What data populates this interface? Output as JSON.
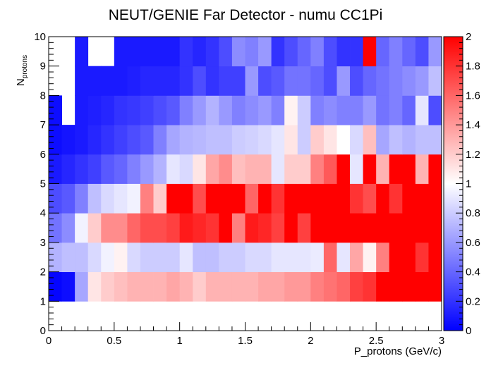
{
  "chart_data": {
    "type": "heatmap",
    "title": "NEUT/GENIE Far Detector - numu CC1Pi",
    "xlabel": "P_protons (GeV/c)",
    "ylabel_main": "N",
    "ylabel_sub": "protons",
    "x_range": [
      0,
      3
    ],
    "y_range": [
      0,
      10
    ],
    "x_bin_width": 0.1,
    "y_bin_width": 1,
    "z_range": [
      0,
      2
    ],
    "x_ticks": [
      {
        "value": 0,
        "label": "0"
      },
      {
        "value": 0.5,
        "label": "0.5"
      },
      {
        "value": 1,
        "label": "1"
      },
      {
        "value": 1.5,
        "label": "1.5"
      },
      {
        "value": 2,
        "label": "2"
      },
      {
        "value": 2.5,
        "label": "2.5"
      },
      {
        "value": 3,
        "label": "3"
      }
    ],
    "y_ticks": [
      {
        "value": 0,
        "label": "0"
      },
      {
        "value": 1,
        "label": "1"
      },
      {
        "value": 2,
        "label": "2"
      },
      {
        "value": 3,
        "label": "3"
      },
      {
        "value": 4,
        "label": "4"
      },
      {
        "value": 5,
        "label": "5"
      },
      {
        "value": 6,
        "label": "6"
      },
      {
        "value": 7,
        "label": "7"
      },
      {
        "value": 8,
        "label": "8"
      },
      {
        "value": 9,
        "label": "9"
      },
      {
        "value": 10,
        "label": "10"
      }
    ],
    "z_ticks": [
      {
        "value": 0,
        "label": "0"
      },
      {
        "value": 0.2,
        "label": "0.2"
      },
      {
        "value": 0.4,
        "label": "0.4"
      },
      {
        "value": 0.6,
        "label": "0.6"
      },
      {
        "value": 0.8,
        "label": "0.8"
      },
      {
        "value": 1,
        "label": "1"
      },
      {
        "value": 1.2,
        "label": "1.2"
      },
      {
        "value": 1.4,
        "label": "1.4"
      },
      {
        "value": 1.6,
        "label": "1.6"
      },
      {
        "value": 1.8,
        "label": "1.8"
      },
      {
        "value": 2,
        "label": "2"
      }
    ],
    "palette": {
      "low": "#0000ff",
      "mid": "#ffffff",
      "high": "#ff0000"
    },
    "z_rows_note": "values[row] = y bin row (row 0 = N 0-1), each row has 30 x bins of width 0.1; null = empty bin",
    "values": [
      [
        null,
        null,
        null,
        null,
        null,
        null,
        null,
        null,
        null,
        null,
        null,
        null,
        null,
        null,
        null,
        null,
        null,
        null,
        null,
        null,
        null,
        null,
        null,
        null,
        null,
        null,
        null,
        null,
        null,
        null
      ],
      [
        0.02,
        0.05,
        0.65,
        1.1,
        1.2,
        1.25,
        1.3,
        1.3,
        1.3,
        1.35,
        1.3,
        1.2,
        1.3,
        1.3,
        1.3,
        1.3,
        1.35,
        1.35,
        1.4,
        1.4,
        1.5,
        1.55,
        1.6,
        1.75,
        1.8,
        2.0,
        2.0,
        2.0,
        2.0,
        2.0
      ],
      [
        0.7,
        0.75,
        0.75,
        0.85,
        0.95,
        1.05,
        0.85,
        0.8,
        0.8,
        0.8,
        0.9,
        0.75,
        0.75,
        0.8,
        0.8,
        0.85,
        0.85,
        0.9,
        0.9,
        0.9,
        0.92,
        1.6,
        0.9,
        1.35,
        1.05,
        1.5,
        2.0,
        2.0,
        1.8,
        2.0
      ],
      [
        0.45,
        0.55,
        0.95,
        1.2,
        1.45,
        1.45,
        1.6,
        1.7,
        1.7,
        1.75,
        1.9,
        1.85,
        1.8,
        2.0,
        1.5,
        1.9,
        1.85,
        1.75,
        2.0,
        1.75,
        2.0,
        2.0,
        2.0,
        2.0,
        2.0,
        2.0,
        2.0,
        2.0,
        2.0,
        2.0
      ],
      [
        0.3,
        0.35,
        0.5,
        0.75,
        0.85,
        0.9,
        0.95,
        1.5,
        1.2,
        2.0,
        2.0,
        1.7,
        2.0,
        2.0,
        2.0,
        1.6,
        2.0,
        1.8,
        2.0,
        2.0,
        2.0,
        2.0,
        2.0,
        1.8,
        1.7,
        2.0,
        1.8,
        2.0,
        2.0,
        2.0
      ],
      [
        0.1,
        0.15,
        0.2,
        0.25,
        0.35,
        0.4,
        0.5,
        0.6,
        0.7,
        0.9,
        0.85,
        1.1,
        1.35,
        1.45,
        1.25,
        1.3,
        1.3,
        0.9,
        1.2,
        1.2,
        1.5,
        1.65,
        2.0,
        0.9,
        2.0,
        1.3,
        2.0,
        2.0,
        1.3,
        2.0
      ],
      [
        0.05,
        0.08,
        0.1,
        0.15,
        0.2,
        0.25,
        0.3,
        0.35,
        0.5,
        0.65,
        0.7,
        0.72,
        0.75,
        0.75,
        0.8,
        0.82,
        0.85,
        0.9,
        1.1,
        0.8,
        1.2,
        1.1,
        1.0,
        0.85,
        1.25,
        0.65,
        0.75,
        0.7,
        0.75,
        0.75
      ],
      [
        0.05,
        null,
        0.1,
        0.12,
        0.15,
        0.2,
        0.22,
        0.25,
        0.3,
        0.35,
        0.5,
        0.6,
        0.7,
        0.6,
        0.5,
        0.55,
        0.6,
        0.5,
        1.05,
        0.8,
        0.5,
        0.55,
        0.5,
        0.5,
        0.6,
        0.45,
        0.5,
        0.4,
        0.9,
        0.3
      ],
      [
        null,
        null,
        0.1,
        0.1,
        0.1,
        0.1,
        0.12,
        0.15,
        0.15,
        0.15,
        0.2,
        0.3,
        0.2,
        0.25,
        0.25,
        0.6,
        0.3,
        0.35,
        0.45,
        0.45,
        0.4,
        0.3,
        0.6,
        0.3,
        0.4,
        0.45,
        0.5,
        0.55,
        0.6,
        0.75
      ],
      [
        null,
        null,
        0.1,
        null,
        null,
        0.1,
        0.1,
        0.1,
        0.1,
        0.1,
        0.2,
        0.15,
        0.2,
        0.3,
        0.55,
        0.5,
        0.6,
        0.2,
        0.3,
        0.4,
        0.5,
        0.3,
        0.2,
        0.2,
        2.0,
        0.4,
        0.5,
        0.4,
        0.3,
        0.6
      ]
    ]
  }
}
